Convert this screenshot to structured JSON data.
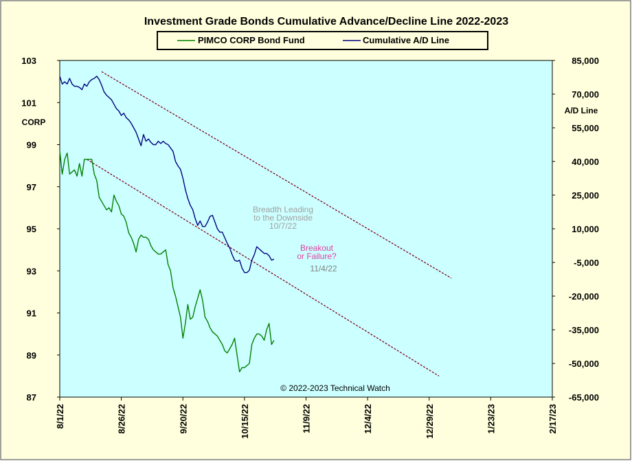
{
  "chart_data": {
    "type": "line",
    "title": "Investment Grade Bonds Cumulative Advance/Decline Line 2022-2023",
    "legend": {
      "placement": "top-center",
      "entries": [
        "PIMCO CORP Bond Fund",
        "Cumulative A/D Line"
      ]
    },
    "left_axis": {
      "label": "CORP",
      "range": [
        87,
        103
      ],
      "ticks": [
        "103",
        "101",
        "99",
        "97",
        "95",
        "93",
        "91",
        "89",
        "87"
      ]
    },
    "right_axis": {
      "label": "A/D Line",
      "range": [
        -65000,
        85000
      ],
      "ticks": [
        "85,000",
        "70,000",
        "55,000",
        "40,000",
        "25,000",
        "10,000",
        "-5,000",
        "-20,000",
        "-35,000",
        "-50,000",
        "-65,000"
      ]
    },
    "x_axis": {
      "ticks": [
        "8/1/22",
        "8/26/22",
        "9/20/22",
        "10/15/22",
        "11/9/22",
        "12/4/22",
        "12/29/22",
        "1/23/23",
        "2/17/23"
      ],
      "range_days": [
        0,
        200
      ]
    },
    "series": [
      {
        "name": "PIMCO CORP Bond Fund",
        "axis": "left",
        "color": "#008000",
        "points": [
          [
            0,
            98.7
          ],
          [
            1,
            97.6
          ],
          [
            2,
            98.3
          ],
          [
            3,
            98.6
          ],
          [
            4,
            97.6
          ],
          [
            5,
            97.7
          ],
          [
            6,
            97.8
          ],
          [
            7,
            97.5
          ],
          [
            8,
            98.1
          ],
          [
            9,
            97.5
          ],
          [
            10,
            98.3
          ],
          [
            11,
            98.3
          ],
          [
            12,
            98.3
          ],
          [
            13,
            98.3
          ],
          [
            14,
            97.6
          ],
          [
            15,
            97.3
          ],
          [
            16,
            96.5
          ],
          [
            17,
            96.3
          ],
          [
            18,
            96.1
          ],
          [
            19,
            95.9
          ],
          [
            20,
            96.0
          ],
          [
            21,
            95.8
          ],
          [
            22,
            96.6
          ],
          [
            23,
            96.3
          ],
          [
            24,
            96.1
          ],
          [
            25,
            95.7
          ],
          [
            26,
            95.6
          ],
          [
            27,
            95.3
          ],
          [
            28,
            94.8
          ],
          [
            29,
            94.6
          ],
          [
            30,
            94.3
          ],
          [
            31,
            93.9
          ],
          [
            32,
            94.5
          ],
          [
            33,
            94.7
          ],
          [
            34,
            94.6
          ],
          [
            35,
            94.6
          ],
          [
            36,
            94.5
          ],
          [
            37,
            94.2
          ],
          [
            38,
            94.0
          ],
          [
            39,
            93.9
          ],
          [
            40,
            93.8
          ],
          [
            41,
            93.8
          ],
          [
            42,
            93.9
          ],
          [
            43,
            94.0
          ],
          [
            44,
            93.3
          ],
          [
            45,
            93.0
          ],
          [
            46,
            92.2
          ],
          [
            47,
            91.8
          ],
          [
            48,
            91.3
          ],
          [
            49,
            90.8
          ],
          [
            50,
            89.8
          ],
          [
            51,
            90.5
          ],
          [
            52,
            91.4
          ],
          [
            53,
            90.7
          ],
          [
            54,
            90.8
          ],
          [
            55,
            91.3
          ],
          [
            56,
            91.7
          ],
          [
            57,
            92.1
          ],
          [
            58,
            91.6
          ],
          [
            59,
            90.8
          ],
          [
            60,
            90.6
          ],
          [
            61,
            90.3
          ],
          [
            62,
            90.1
          ],
          [
            63,
            90.0
          ],
          [
            64,
            89.9
          ],
          [
            65,
            89.7
          ],
          [
            66,
            89.5
          ],
          [
            67,
            89.2
          ],
          [
            68,
            89.1
          ],
          [
            69,
            89.3
          ],
          [
            70,
            89.5
          ],
          [
            71,
            89.8
          ],
          [
            72,
            89.0
          ],
          [
            73,
            88.2
          ],
          [
            74,
            88.4
          ],
          [
            75,
            88.4
          ],
          [
            76,
            88.5
          ],
          [
            77,
            88.6
          ],
          [
            78,
            89.5
          ],
          [
            79,
            89.8
          ],
          [
            80,
            90.0
          ],
          [
            81,
            90.0
          ],
          [
            82,
            89.9
          ],
          [
            83,
            89.7
          ],
          [
            84,
            90.2
          ],
          [
            85,
            90.5
          ],
          [
            86,
            89.5
          ],
          [
            87,
            89.7
          ]
        ]
      },
      {
        "name": "Cumulative A/D Line",
        "axis": "right",
        "color": "#000080",
        "points": [
          [
            0,
            78000
          ],
          [
            1,
            74500
          ],
          [
            2,
            75500
          ],
          [
            3,
            74500
          ],
          [
            4,
            77000
          ],
          [
            5,
            74500
          ],
          [
            6,
            73500
          ],
          [
            7,
            73500
          ],
          [
            8,
            73000
          ],
          [
            9,
            72000
          ],
          [
            10,
            74500
          ],
          [
            11,
            73500
          ],
          [
            12,
            75500
          ],
          [
            13,
            76500
          ],
          [
            14,
            77000
          ],
          [
            15,
            78000
          ],
          [
            16,
            76500
          ],
          [
            17,
            74000
          ],
          [
            18,
            71000
          ],
          [
            19,
            69500
          ],
          [
            20,
            68500
          ],
          [
            21,
            67500
          ],
          [
            22,
            65500
          ],
          [
            23,
            63500
          ],
          [
            24,
            62500
          ],
          [
            25,
            60500
          ],
          [
            26,
            61500
          ],
          [
            27,
            59500
          ],
          [
            28,
            58500
          ],
          [
            29,
            57000
          ],
          [
            30,
            55000
          ],
          [
            31,
            53000
          ],
          [
            32,
            50000
          ],
          [
            33,
            47000
          ],
          [
            34,
            52000
          ],
          [
            35,
            49000
          ],
          [
            36,
            50000
          ],
          [
            37,
            48500
          ],
          [
            38,
            47500
          ],
          [
            39,
            47500
          ],
          [
            40,
            49000
          ],
          [
            41,
            48000
          ],
          [
            42,
            49000
          ],
          [
            43,
            48000
          ],
          [
            44,
            47500
          ],
          [
            45,
            46000
          ],
          [
            46,
            44500
          ],
          [
            47,
            40000
          ],
          [
            48,
            38000
          ],
          [
            49,
            36500
          ],
          [
            50,
            32500
          ],
          [
            51,
            27500
          ],
          [
            52,
            23500
          ],
          [
            53,
            20500
          ],
          [
            54,
            18500
          ],
          [
            55,
            14500
          ],
          [
            56,
            11500
          ],
          [
            57,
            13500
          ],
          [
            58,
            11000
          ],
          [
            59,
            11000
          ],
          [
            60,
            13000
          ],
          [
            61,
            15500
          ],
          [
            62,
            16000
          ],
          [
            63,
            13000
          ],
          [
            64,
            10000
          ],
          [
            65,
            8500
          ],
          [
            66,
            8500
          ],
          [
            67,
            6000
          ],
          [
            68,
            3500
          ],
          [
            69,
            1500
          ],
          [
            70,
            -1500
          ],
          [
            71,
            -4000
          ],
          [
            72,
            -4500
          ],
          [
            73,
            -4000
          ],
          [
            74,
            -7500
          ],
          [
            75,
            -9500
          ],
          [
            76,
            -9500
          ],
          [
            77,
            -8500
          ],
          [
            78,
            -4000
          ],
          [
            79,
            -1500
          ],
          [
            80,
            2000
          ],
          [
            81,
            1000
          ],
          [
            82,
            0
          ],
          [
            83,
            -1000
          ],
          [
            84,
            -1000
          ],
          [
            85,
            -2000
          ],
          [
            86,
            -4000
          ],
          [
            87,
            -3500
          ]
        ]
      }
    ],
    "trendlines": [
      {
        "axis": "right",
        "color": "#800020",
        "from": [
          17,
          80000
        ],
        "to": [
          159,
          -12000
        ]
      },
      {
        "axis": "left",
        "color": "#800020",
        "from": [
          11,
          98.3
        ],
        "to": [
          154,
          88.0
        ]
      }
    ],
    "annotations": [
      {
        "id": "breadth",
        "lines": [
          "Breadth Leading",
          "to the Downside",
          "10/7/22"
        ],
        "color": "#a0a0a0"
      },
      {
        "id": "breakout-q",
        "lines": [
          "Breakout",
          "or Failure?"
        ],
        "color": "#e040a0"
      },
      {
        "id": "breakout-date",
        "lines": [
          "11/4/22"
        ],
        "color": "#808080"
      }
    ],
    "copyright": "© 2022-2023  Technical  Watch",
    "grid": false
  }
}
